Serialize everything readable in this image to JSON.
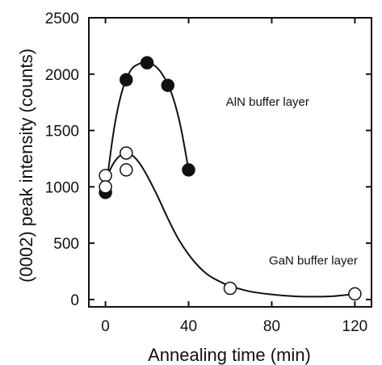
{
  "chart_data": {
    "type": "scatter",
    "title": "",
    "xlabel": "Annealing time (min)",
    "ylabel": "(0002) peak intensity (counts)",
    "xlim": [
      -8,
      128
    ],
    "ylim": [
      -65,
      2500
    ],
    "x_ticks": [
      0,
      40,
      80,
      120
    ],
    "y_ticks": [
      0,
      500,
      1000,
      1500,
      2000,
      2500
    ],
    "grid": false,
    "series": [
      {
        "marker": "filled-circle",
        "color": "#111111",
        "points": [
          [
            0,
            950
          ],
          [
            10,
            1950
          ],
          [
            20,
            2100
          ],
          [
            30,
            1900
          ],
          [
            40,
            1150
          ]
        ],
        "curve": [
          [
            0,
            950
          ],
          [
            4,
            1500
          ],
          [
            8,
            1850
          ],
          [
            12,
            2030
          ],
          [
            16,
            2090
          ],
          [
            20,
            2100
          ],
          [
            24,
            2070
          ],
          [
            28,
            1980
          ],
          [
            32,
            1820
          ],
          [
            36,
            1550
          ],
          [
            40,
            1150
          ]
        ]
      },
      {
        "marker": "open-circle",
        "color": "#111111",
        "points": [
          [
            0,
            1100
          ],
          [
            0,
            1000
          ],
          [
            10,
            1300
          ],
          [
            10,
            1150
          ],
          [
            60,
            100
          ],
          [
            120,
            50
          ]
        ],
        "curve": [
          [
            0,
            1050
          ],
          [
            3,
            1180
          ],
          [
            6,
            1260
          ],
          [
            9,
            1295
          ],
          [
            12,
            1290
          ],
          [
            16,
            1220
          ],
          [
            20,
            1100
          ],
          [
            25,
            920
          ],
          [
            30,
            720
          ],
          [
            35,
            540
          ],
          [
            40,
            400
          ],
          [
            45,
            290
          ],
          [
            50,
            210
          ],
          [
            55,
            160
          ],
          [
            60,
            120
          ],
          [
            70,
            70
          ],
          [
            80,
            45
          ],
          [
            90,
            30
          ],
          [
            100,
            25
          ],
          [
            110,
            30
          ],
          [
            120,
            50
          ]
        ]
      }
    ],
    "annotations": [
      {
        "text": "AlN buffer layer",
        "x": 78,
        "y": 1720
      },
      {
        "text": "GaN buffer layer",
        "x": 100,
        "y": 310
      }
    ]
  }
}
